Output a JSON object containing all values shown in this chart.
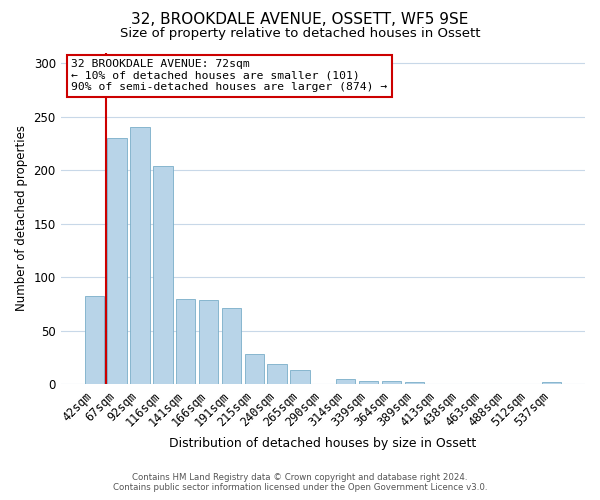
{
  "title": "32, BROOKDALE AVENUE, OSSETT, WF5 9SE",
  "subtitle": "Size of property relative to detached houses in Ossett",
  "xlabel": "Distribution of detached houses by size in Ossett",
  "ylabel": "Number of detached properties",
  "categories": [
    "42sqm",
    "67sqm",
    "92sqm",
    "116sqm",
    "141sqm",
    "166sqm",
    "191sqm",
    "215sqm",
    "240sqm",
    "265sqm",
    "290sqm",
    "314sqm",
    "339sqm",
    "364sqm",
    "389sqm",
    "413sqm",
    "438sqm",
    "463sqm",
    "488sqm",
    "512sqm",
    "537sqm"
  ],
  "values": [
    83,
    230,
    240,
    204,
    80,
    79,
    71,
    28,
    19,
    13,
    0,
    5,
    3,
    3,
    2,
    0,
    0,
    0,
    0,
    0,
    2
  ],
  "bar_color": "#b8d4e8",
  "bar_edge_color": "#7aaec8",
  "redline_x": 0.5,
  "ylim": [
    0,
    310
  ],
  "yticks": [
    0,
    50,
    100,
    150,
    200,
    250,
    300
  ],
  "annotation_title": "32 BROOKDALE AVENUE: 72sqm",
  "annotation_line1": "← 10% of detached houses are smaller (101)",
  "annotation_line2": "90% of semi-detached houses are larger (874) →",
  "annotation_box_color": "#ffffff",
  "annotation_box_edge_color": "#cc0000",
  "footer_line1": "Contains HM Land Registry data © Crown copyright and database right 2024.",
  "footer_line2": "Contains public sector information licensed under the Open Government Licence v3.0.",
  "background_color": "#ffffff",
  "grid_color": "#c8d8e8",
  "title_fontsize": 11,
  "subtitle_fontsize": 9.5,
  "redline_color": "#cc0000"
}
